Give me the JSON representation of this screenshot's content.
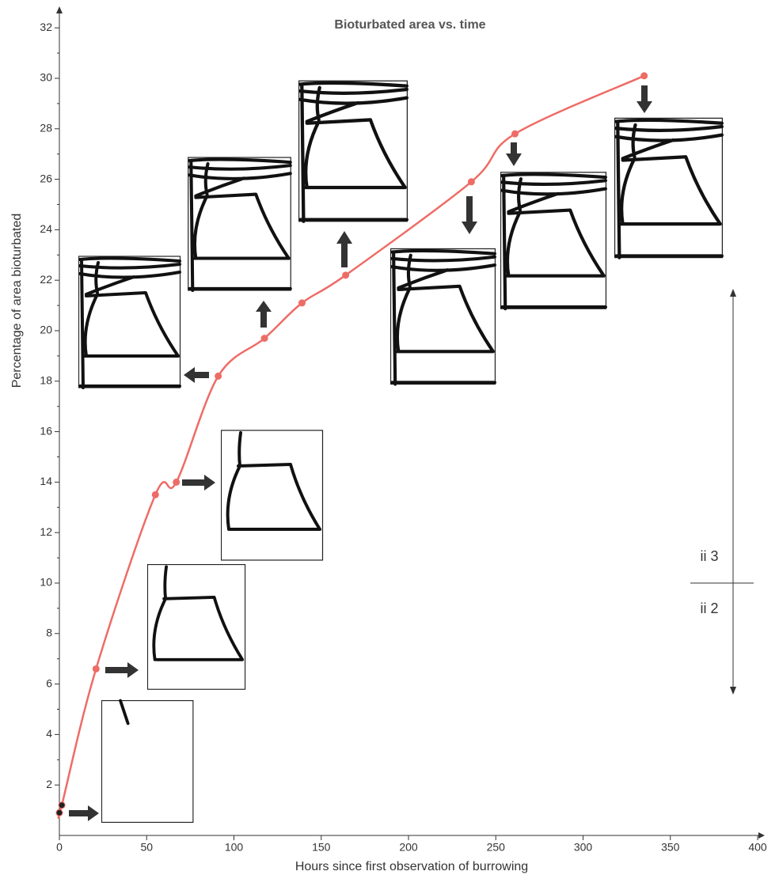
{
  "chart_data": {
    "type": "line",
    "title": "Bioturbated area vs. time",
    "x_label": "Hours since first observation of burrowing",
    "y_label": "Percentage of area bioturbated",
    "x": [
      0,
      1.4,
      21,
      55,
      67,
      91,
      117.5,
      139,
      164,
      236,
      261,
      335
    ],
    "values": [
      0.9,
      1.2,
      6.6,
      13.5,
      14.0,
      18.2,
      19.7,
      21.1,
      22.2,
      25.9,
      27.8,
      30.1
    ],
    "color": "#ee6c66",
    "xlim": [
      0,
      400
    ],
    "xticks": [
      0,
      50,
      100,
      150,
      200,
      250,
      300,
      350,
      400
    ],
    "ylim": [
      0,
      32
    ],
    "yticks": [
      2,
      4,
      6,
      8,
      10,
      12,
      14,
      16,
      18,
      20,
      22,
      24,
      26,
      28,
      30,
      32
    ],
    "annotations": [
      "ii 3",
      "ii 2"
    ]
  }
}
